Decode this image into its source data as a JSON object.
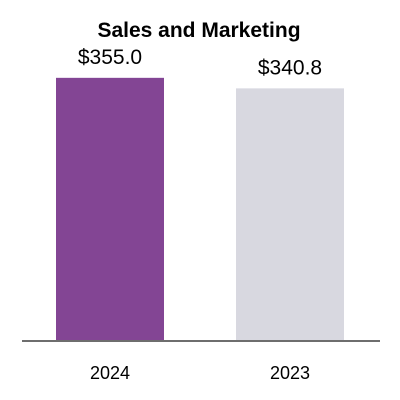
{
  "chart_data": {
    "type": "bar",
    "title": "Sales and Marketing",
    "categories": [
      "2024",
      "2023"
    ],
    "values": [
      355.0,
      340.8
    ],
    "data_labels": [
      "$355.0",
      "$340.8"
    ],
    "bar_colors": [
      "#834594",
      "#d8d8e0"
    ],
    "axis_color": "#6e6e6e",
    "xlabel": "",
    "ylabel": "",
    "ylim": [
      0,
      460
    ],
    "grid": false,
    "legend": "none"
  }
}
